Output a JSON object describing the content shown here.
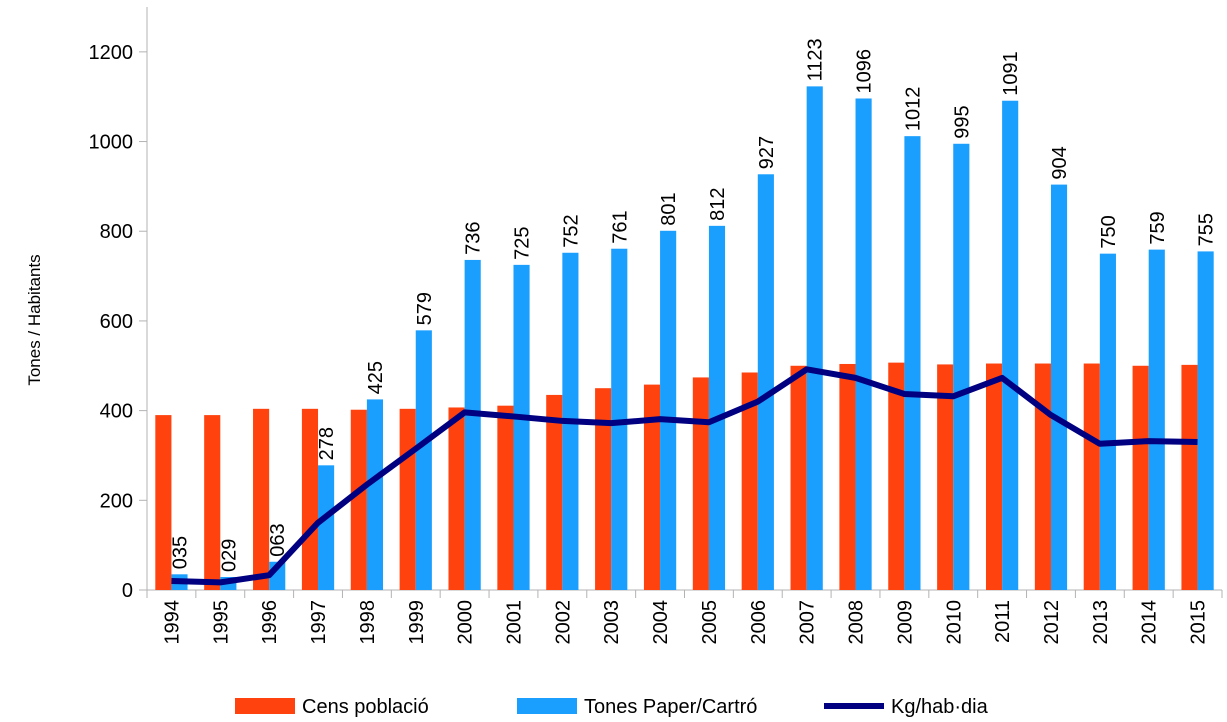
{
  "chart_data": {
    "type": "bar",
    "y_label": "Tones / Habitants",
    "categories": [
      "1994",
      "1995",
      "1996",
      "1997",
      "1998",
      "1999",
      "2000",
      "2001",
      "2002",
      "2003",
      "2004",
      "2005",
      "2006",
      "2007",
      "2008",
      "2009",
      "2010",
      "2011",
      "2012",
      "2013",
      "2014",
      "2015"
    ],
    "series": [
      {
        "name": "Cens població",
        "type": "bar",
        "color": "#ff420e",
        "values": [
          390,
          390,
          404,
          404,
          402,
          404,
          407,
          411,
          435,
          450,
          458,
          474,
          485,
          500,
          504,
          507,
          503,
          505,
          505,
          505,
          500,
          502
        ]
      },
      {
        "name": "Tones Paper/Cartró",
        "type": "bar",
        "color": "#1a9fff",
        "values": [
          35,
          29,
          63,
          278,
          425,
          579,
          736,
          725,
          752,
          761,
          801,
          812,
          927,
          1123,
          1096,
          1012,
          995,
          1091,
          904,
          750,
          759,
          755
        ],
        "value_labels": [
          "035",
          "029",
          "063",
          "278",
          "425",
          "579",
          "736",
          "725",
          "752",
          "761",
          "801",
          "812",
          "927",
          "1123",
          "1096",
          "1012",
          "995",
          "1091",
          "904",
          "750",
          "759",
          "755"
        ]
      },
      {
        "name": "Kg/hab·dia",
        "type": "line",
        "color": "#000080",
        "values": [
          20,
          17,
          33,
          150,
          235,
          315,
          396,
          387,
          377,
          372,
          381,
          374,
          420,
          492,
          473,
          437,
          432,
          473,
          390,
          326,
          332,
          330
        ]
      }
    ],
    "ylim": [
      0,
      1300
    ],
    "yticks": [
      0,
      200,
      400,
      600,
      800,
      1000,
      1200
    ],
    "grid": false,
    "legend": "bottom"
  }
}
